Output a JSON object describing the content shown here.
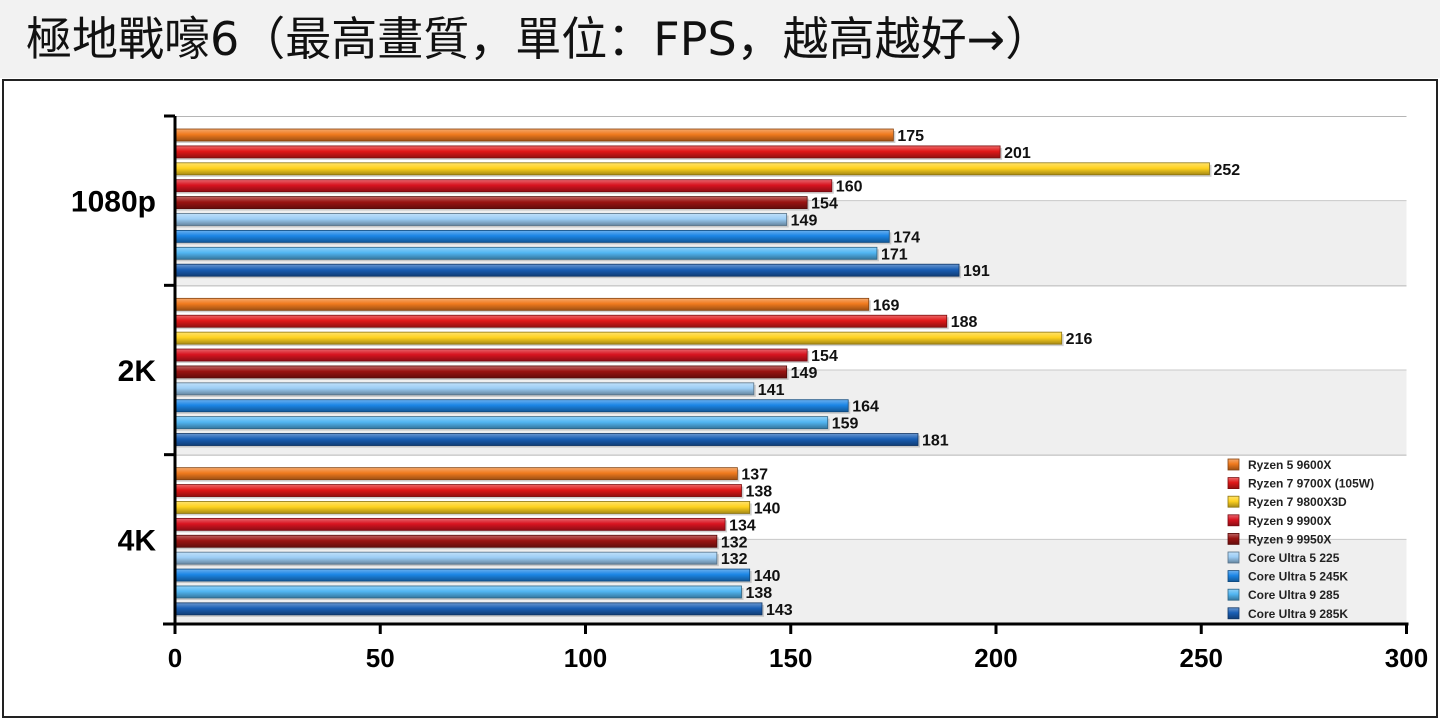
{
  "title": "極地戰嚎6（最高畫質，單位：FPS，越高越好→）",
  "chart_data": {
    "type": "bar",
    "orientation": "horizontal",
    "title": "極地戰嚎6（最高畫質，單位：FPS，越高越好→）",
    "categories": [
      "1080p",
      "2K",
      "4K"
    ],
    "xlim": [
      0,
      300
    ],
    "xticks": [
      0,
      50,
      100,
      150,
      200,
      250,
      300
    ],
    "legend_position": "bottom-right",
    "grid": "alternating-band",
    "series": [
      {
        "name": "Ryzen 5 9600X",
        "values": [
          175,
          169,
          137
        ],
        "color": "#f07a1e"
      },
      {
        "name": "Ryzen 7 9700X (105W)",
        "values": [
          201,
          188,
          138
        ],
        "color": "#e01818"
      },
      {
        "name": "Ryzen 7 9800X3D",
        "values": [
          252,
          216,
          140
        ],
        "color": "#ffd21f"
      },
      {
        "name": "Ryzen 9 9900X",
        "values": [
          160,
          154,
          134
        ],
        "color": "#d81420"
      },
      {
        "name": "Ryzen 9 9950X",
        "values": [
          154,
          149,
          132
        ],
        "color": "#9a1412"
      },
      {
        "name": "Core Ultra 5 225",
        "values": [
          149,
          141,
          132
        ],
        "color": "#9ccdf5"
      },
      {
        "name": "Core Ultra 5 245K",
        "values": [
          174,
          164,
          140
        ],
        "color": "#1c86e6"
      },
      {
        "name": "Core Ultra 9 285",
        "values": [
          171,
          159,
          138
        ],
        "color": "#52b6f2"
      },
      {
        "name": "Core Ultra 9 285K",
        "values": [
          191,
          181,
          143
        ],
        "color": "#1a5fb5"
      }
    ]
  }
}
